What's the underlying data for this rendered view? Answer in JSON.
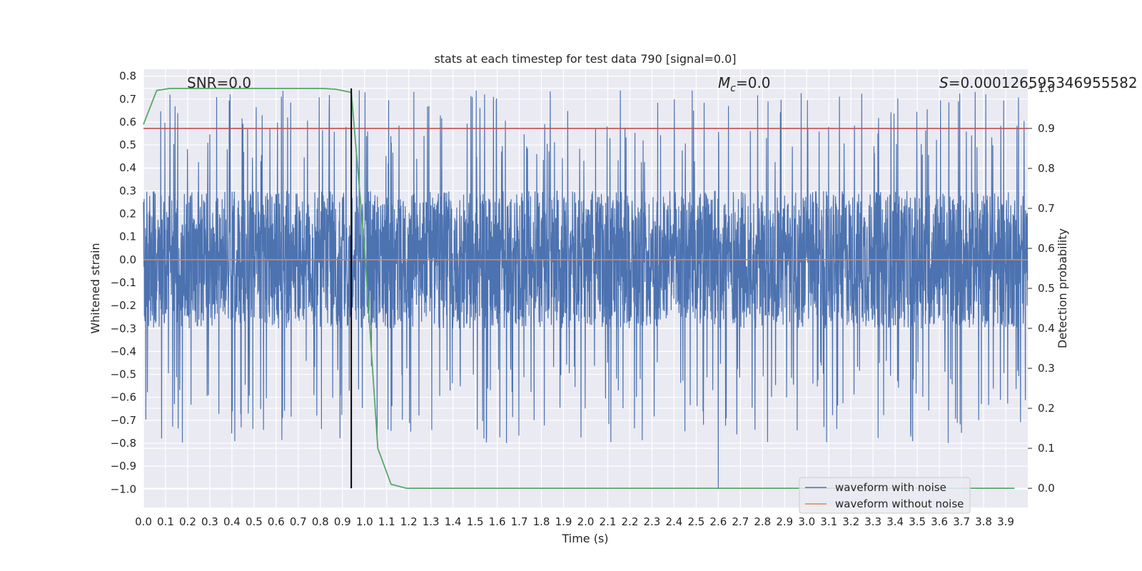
{
  "chart_data": {
    "type": "line",
    "title": "stats at each timestep for test data 790 [signal=0.0]",
    "xlabel": "Time (s)",
    "ylabel": "Whitened strain",
    "y2label": "Detection probability",
    "xlim": [
      0.0,
      4.0
    ],
    "ylim": [
      -1.08,
      0.83
    ],
    "y2lim": [
      -0.048,
      1.048
    ],
    "xticks": [
      "0.0",
      "0.1",
      "0.2",
      "0.3",
      "0.4",
      "0.5",
      "0.6",
      "0.7",
      "0.8",
      "0.9",
      "1.0",
      "1.1",
      "1.2",
      "1.3",
      "1.4",
      "1.5",
      "1.6",
      "1.7",
      "1.8",
      "1.9",
      "2.0",
      "2.1",
      "2.2",
      "2.3",
      "2.4",
      "2.5",
      "2.6",
      "2.7",
      "2.8",
      "2.9",
      "3.0",
      "3.1",
      "3.2",
      "3.3",
      "3.4",
      "3.5",
      "3.6",
      "3.7",
      "3.8",
      "3.9"
    ],
    "yticks": [
      "0.8",
      "0.7",
      "0.6",
      "0.5",
      "0.4",
      "0.3",
      "0.2",
      "0.1",
      "0.0",
      "−0.1",
      "−0.2",
      "−0.3",
      "−0.4",
      "−0.5",
      "−0.6",
      "−0.7",
      "−0.8",
      "−0.9",
      "−1.0"
    ],
    "y2ticks": [
      "1.0",
      "0.9",
      "0.8",
      "0.7",
      "0.6",
      "0.5",
      "0.4",
      "0.3",
      "0.2",
      "0.1",
      "0.0"
    ],
    "grid": true,
    "legend_position": "lower-right",
    "series": [
      {
        "name": "waveform with noise",
        "color": "#4c72b0",
        "axis": "left",
        "kind": "noise",
        "samples": 4000,
        "typical_range": [
          -0.3,
          0.3
        ],
        "peak_range": [
          -0.8,
          0.74
        ],
        "min_value": -1.0,
        "min_at": 2.6
      },
      {
        "name": "waveform without noise",
        "color": "#dd8452",
        "axis": "left",
        "x": [
          0.0,
          4.0
        ],
        "values": [
          0.0,
          0.0
        ]
      },
      {
        "name": "detection probability",
        "color": "#55a868",
        "axis": "right",
        "x": [
          0.0,
          0.06,
          0.12,
          0.18,
          0.25,
          0.31,
          0.37,
          0.43,
          0.5,
          0.56,
          0.62,
          0.68,
          0.75,
          0.81,
          0.87,
          0.94,
          1.0,
          1.06,
          1.12,
          1.19,
          1.25,
          1.31,
          1.5,
          2.0,
          2.5,
          3.0,
          3.5,
          3.94
        ],
        "values": [
          0.91,
          0.995,
          1.0,
          1.0,
          1.0,
          1.0,
          1.0,
          1.0,
          1.0,
          1.0,
          1.0,
          1.0,
          1.0,
          1.0,
          0.998,
          0.99,
          0.6,
          0.1,
          0.01,
          0.0,
          0.0,
          0.0,
          0.0,
          0.0,
          0.0,
          0.0,
          0.0,
          0.0
        ]
      },
      {
        "name": "threshold",
        "color": "#c44e52",
        "axis": "right",
        "x": [
          0.0,
          4.0
        ],
        "values": [
          0.9,
          0.9
        ]
      },
      {
        "name": "marker",
        "color": "#000000",
        "axis": "right",
        "kind": "vline",
        "x": 0.94,
        "range": [
          0.0,
          1.0
        ]
      }
    ],
    "annotations": {
      "snr": "SNR=0.0",
      "mc_symbol": "M",
      "mc_sub": "c",
      "mc_value": "=0.0",
      "s_symbol": "S",
      "s_value": "=0.00012659534695558",
      "s_value_end": "2"
    }
  }
}
